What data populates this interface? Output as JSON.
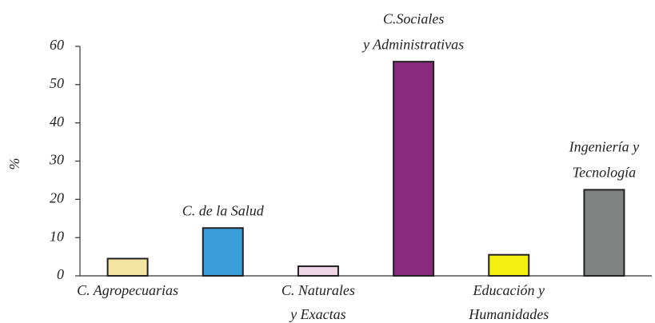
{
  "chart_data": {
    "type": "bar",
    "y_label": "%",
    "categories": [
      [
        "C. Agropecuarias"
      ],
      [
        "C. de la Salud"
      ],
      [
        "C. Naturales",
        "y Exactas"
      ],
      [
        "C.Sociales",
        "y Administrativas"
      ],
      [
        "Educación y",
        "Humanidades"
      ],
      [
        "Ingeniería y",
        "Tecnología"
      ]
    ],
    "values": [
      4.5,
      12.5,
      2.5,
      56,
      5.5,
      22.5
    ],
    "colors": [
      "#f3e4a2",
      "#3a9edb",
      "#f1d6e6",
      "#8a2a7f",
      "#f4ef10",
      "#7f8381"
    ],
    "ylim": [
      0,
      60
    ],
    "yticks": [
      0,
      10,
      20,
      30,
      40,
      50,
      60
    ]
  }
}
